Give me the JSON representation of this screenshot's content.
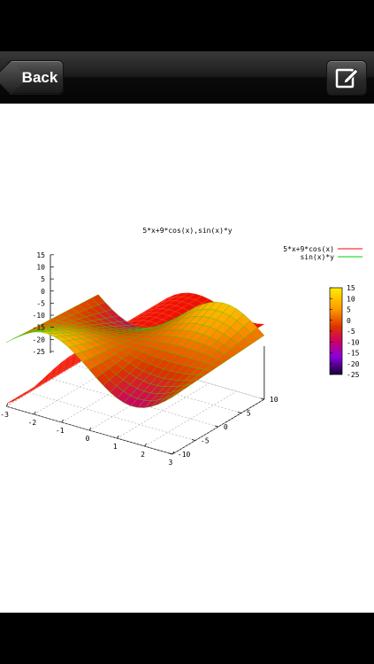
{
  "nav": {
    "back_label": "Back",
    "edit_icon": "compose-icon"
  },
  "chart_data": {
    "type": "surface",
    "title": "5*x+9*cos(x),sin(x)*y",
    "series": [
      {
        "name": "5*x+9*cos(x)",
        "color": "#ff0000"
      },
      {
        "name": "sin(x)*y",
        "color": "#00cc00"
      }
    ],
    "z_ticks": [
      "15",
      "10",
      "5",
      "0",
      "-5",
      "-10",
      "-15",
      "-20",
      "-25"
    ],
    "x_ticks": [
      "-3",
      "-2",
      "-1",
      "0",
      "1",
      "2",
      "3"
    ],
    "y_ticks": [
      "-10",
      "-5",
      "0",
      "5",
      "10"
    ],
    "xlim": [
      -3,
      3
    ],
    "ylim": [
      -10,
      10
    ],
    "zlim": [
      -25,
      15
    ],
    "colorbar_ticks": [
      "15",
      "10",
      "5",
      "0",
      "-5",
      "-10",
      "-15",
      "-20",
      "-25"
    ],
    "colorbar_range": [
      -25,
      15
    ]
  }
}
